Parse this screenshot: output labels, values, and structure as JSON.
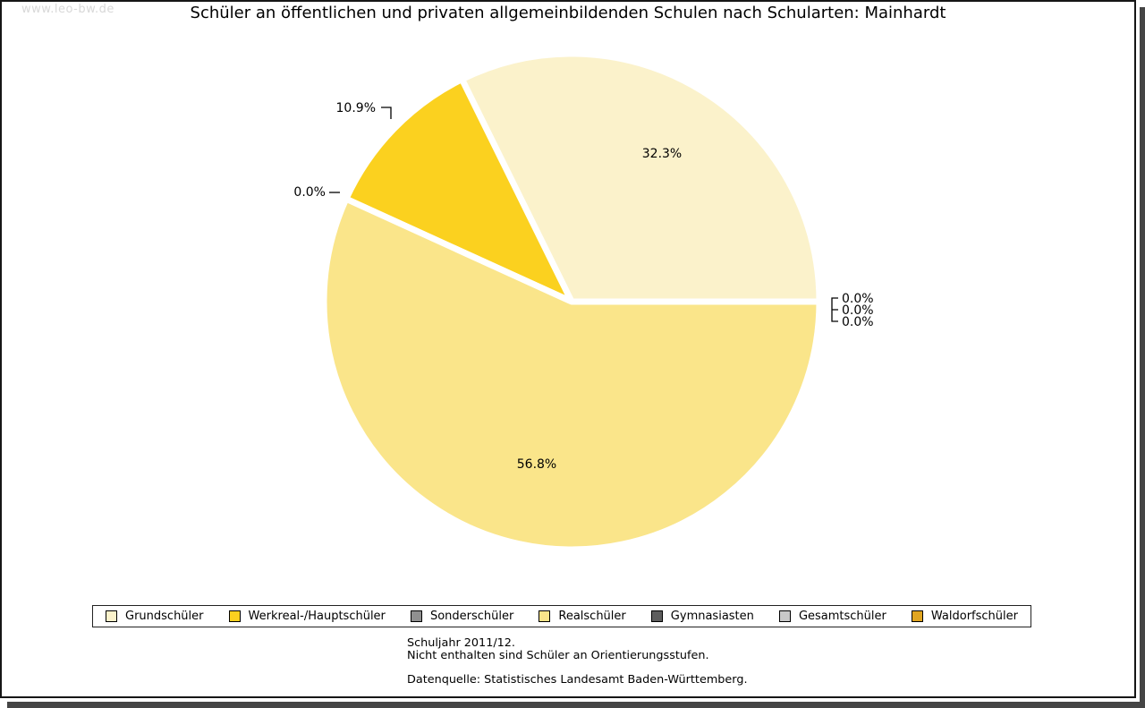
{
  "watermark": "www.leo-bw.de",
  "title": "Schüler an öffentlichen und privaten allgemeinbildenden Schulen nach Schularten: Mainhardt",
  "chart_data": {
    "type": "pie",
    "title": "Schüler an öffentlichen und privaten allgemeinbildenden Schulen nach Schularten: Mainhardt",
    "categories": [
      "Grundschüler",
      "Werkreal-/Hauptschüler",
      "Sonderschüler",
      "Realschüler",
      "Gymnasiasten",
      "Gesamtschüler",
      "Waldorfschüler"
    ],
    "values": [
      32.3,
      10.9,
      0.0,
      56.8,
      0.0,
      0.0,
      0.0
    ],
    "slice_labels": [
      "32.3%",
      "10.9%",
      "0.0%",
      "56.8%",
      "0.0%",
      "0.0%",
      "0.0%"
    ],
    "colors": [
      "#FBF2CB",
      "#FBD11F",
      "#909090",
      "#FAE58A",
      "#5E5E5E",
      "#C8C8C8",
      "#E0A521"
    ],
    "unit": "%",
    "start_angle_deg": 0,
    "direction": "counterclockwise",
    "slice_separator_color": "#FFFFFF",
    "legend_position": "bottom",
    "legend_entries": [
      "Grundschüler",
      "Werkreal-/Hauptschüler",
      "Sonderschüler",
      "Realschüler",
      "Gymnasiasten",
      "Gesamtschüler",
      "Waldorfschüler"
    ]
  },
  "footnotes": {
    "line1": "Schuljahr 2011/12.",
    "line2": "Nicht enthalten sind Schüler an Orientierungsstufen.",
    "source": "Datenquelle: Statistisches Landesamt Baden-Württemberg."
  }
}
